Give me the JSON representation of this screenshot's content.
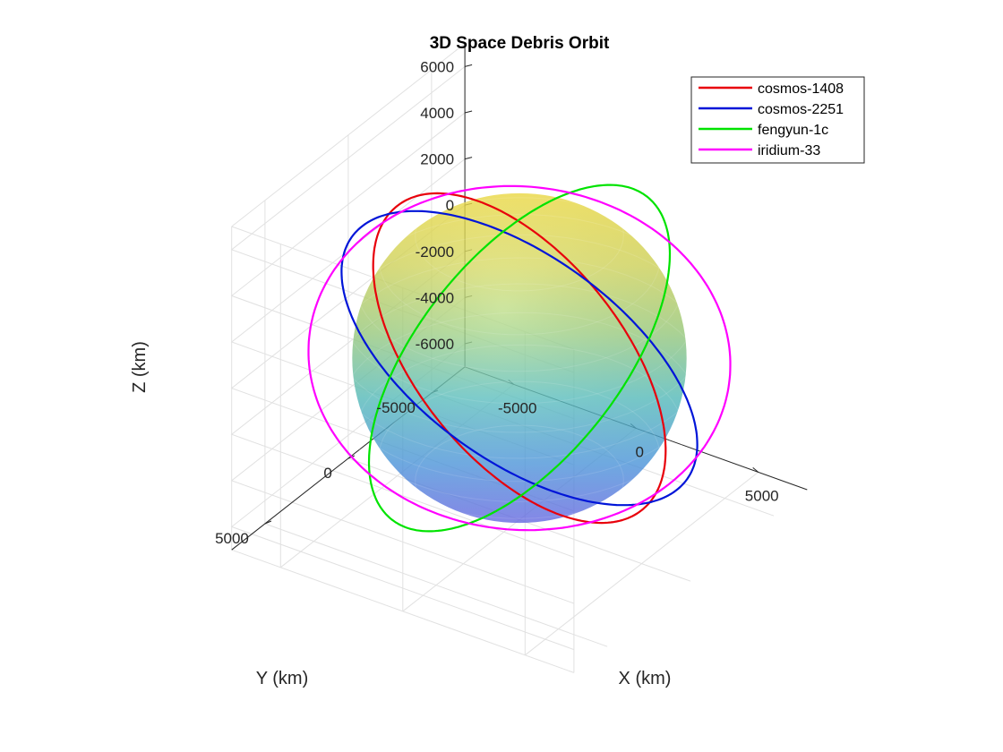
{
  "chart_data": {
    "type": "line",
    "title": "3D Space Debris Orbit",
    "xlabel": "X (km)",
    "ylabel": "Y (km)",
    "zlabel": "Z (km)",
    "xlim": [
      -7000,
      7000
    ],
    "ylim": [
      -7000,
      7000
    ],
    "zlim": [
      -7000,
      7000
    ],
    "x_ticks": [
      "-5000",
      "0",
      "5000"
    ],
    "y_ticks": [
      "-5000",
      "0",
      "5000"
    ],
    "z_ticks": [
      "6000",
      "4000",
      "2000",
      "0",
      "-2000",
      "-4000",
      "-6000"
    ],
    "grid": true,
    "legend_position": "top-right",
    "sphere": {
      "radius_km": 6371,
      "colormap": "parula",
      "transparent": true
    },
    "series": [
      {
        "name": "cosmos-1408",
        "color": "#e8000b",
        "inclination_deg": 82.6,
        "raan_deg": 10,
        "radius_km": 6850
      },
      {
        "name": "cosmos-2251",
        "color": "#0015d8",
        "inclination_deg": 74.0,
        "raan_deg": 0,
        "radius_km": 7150
      },
      {
        "name": "fengyun-1c",
        "color": "#00e300",
        "inclination_deg": 98.6,
        "raan_deg": 100,
        "radius_km": 7200
      },
      {
        "name": "iridium-33",
        "color": "#ff00ff",
        "inclination_deg": 86.4,
        "raan_deg": 150,
        "radius_km": 7150
      }
    ]
  }
}
